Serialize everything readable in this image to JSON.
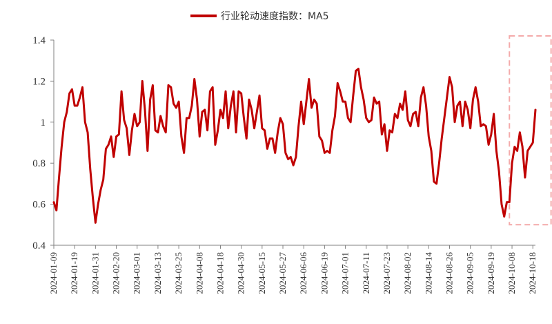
{
  "chart_data": {
    "type": "line",
    "legend_position": "top-center",
    "grid": false,
    "ylim": [
      0.4,
      1.4
    ],
    "yticks": [
      "0.4",
      "0.6",
      "0.8",
      "1",
      "1.2",
      "1.4"
    ],
    "series": [
      {
        "name": "行业轮动速度指数：MA5",
        "color": "#C00000",
        "values": [
          0.61,
          0.57,
          0.73,
          0.88,
          1.0,
          1.05,
          1.14,
          1.16,
          1.08,
          1.08,
          1.12,
          1.17,
          1.0,
          0.95,
          0.77,
          0.63,
          0.51,
          0.6,
          0.67,
          0.72,
          0.87,
          0.89,
          0.93,
          0.83,
          0.93,
          0.94,
          1.15,
          1.01,
          0.97,
          0.84,
          0.96,
          1.04,
          0.98,
          1.0,
          1.2,
          1.06,
          0.86,
          1.11,
          1.18,
          0.96,
          0.95,
          1.03,
          0.98,
          0.95,
          1.18,
          1.17,
          1.09,
          1.07,
          1.1,
          0.93,
          0.85,
          1.02,
          1.02,
          1.08,
          1.21,
          1.11,
          0.93,
          1.05,
          1.06,
          0.96,
          1.15,
          1.17,
          0.89,
          0.96,
          1.06,
          1.02,
          1.15,
          0.97,
          1.08,
          1.15,
          0.95,
          1.15,
          1.14,
          1.02,
          0.92,
          1.11,
          1.06,
          0.97,
          1.05,
          1.13,
          0.97,
          0.96,
          0.87,
          0.92,
          0.92,
          0.85,
          0.95,
          1.02,
          0.99,
          0.85,
          0.82,
          0.83,
          0.79,
          0.83,
          0.98,
          1.1,
          0.99,
          1.1,
          1.21,
          1.07,
          1.11,
          1.09,
          0.93,
          0.91,
          0.85,
          0.86,
          0.85,
          0.96,
          1.03,
          1.19,
          1.15,
          1.1,
          1.1,
          1.02,
          1.0,
          1.13,
          1.25,
          1.26,
          1.17,
          1.11,
          1.02,
          1.0,
          1.01,
          1.12,
          1.09,
          1.1,
          0.94,
          0.99,
          0.86,
          0.96,
          0.95,
          1.04,
          1.02,
          1.09,
          1.06,
          1.15,
          1.01,
          0.98,
          1.04,
          1.05,
          0.98,
          1.12,
          1.17,
          1.08,
          0.93,
          0.86,
          0.71,
          0.7,
          0.8,
          0.92,
          1.02,
          1.12,
          1.22,
          1.17,
          1.0,
          1.08,
          1.1,
          0.98,
          1.1,
          1.06,
          0.97,
          1.11,
          1.17,
          1.1,
          0.98,
          0.99,
          0.98,
          0.89,
          0.94,
          1.04,
          0.86,
          0.76,
          0.6,
          0.54,
          0.61,
          0.61,
          0.8,
          0.88,
          0.86,
          0.95,
          0.88,
          0.73,
          0.86,
          0.88,
          0.9,
          1.06
        ]
      }
    ],
    "x_labels": [
      "2024-01-09",
      "2024-01-19",
      "2024-01-31",
      "2024-02-20",
      "2024-03-01",
      "2024-03-13",
      "2024-03-25",
      "2024-04-08",
      "2024-04-18",
      "2024-04-30",
      "2024-05-15",
      "2024-05-27",
      "2024-06-06",
      "2024-06-19",
      "2024-07-01",
      "2024-07-11",
      "2024-07-23",
      "2024-08-02",
      "2024-08-14",
      "2024-08-26",
      "2024-09-05",
      "2024-09-19",
      "2024-10-08",
      "2024-10-18"
    ],
    "x_label_indices": [
      0,
      8,
      16,
      24,
      32,
      40,
      48,
      56,
      64,
      72,
      80,
      88,
      96,
      104,
      112,
      120,
      128,
      136,
      144,
      152,
      160,
      168,
      176,
      184
    ],
    "highlight": {
      "style": "dashed",
      "color": "#F4AAAA",
      "start_index": 175,
      "end_index": 191,
      "y_range": [
        0.5,
        1.42
      ]
    }
  }
}
